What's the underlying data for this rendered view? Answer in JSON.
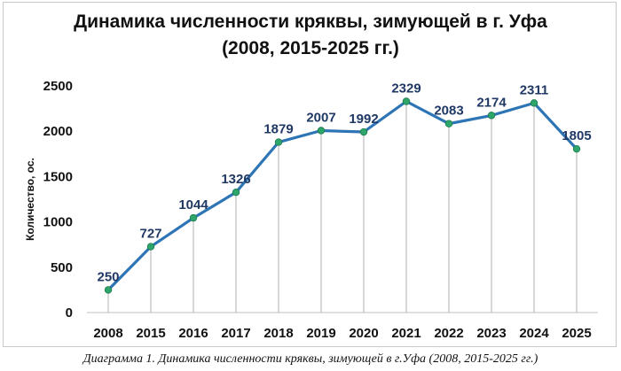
{
  "chart_data": {
    "type": "line",
    "title": "Динамика численности кряквы, зимующей в г. Уфа",
    "subtitle": "(2008, 2015-2025 гг.)",
    "xlabel": "",
    "ylabel": "Количество, ос.",
    "categories": [
      "2008",
      "2015",
      "2016",
      "2017",
      "2018",
      "2019",
      "2020",
      "2021",
      "2022",
      "2023",
      "2024",
      "2025"
    ],
    "values": [
      250,
      727,
      1044,
      1326,
      1879,
      2007,
      1992,
      2329,
      2083,
      2174,
      2311,
      1805
    ],
    "data_labels": [
      "250",
      "727",
      "1044",
      "1326",
      "1879",
      "2007",
      "1992",
      "2329",
      "2083",
      "2174",
      "2311",
      "1805"
    ],
    "ylim": [
      0,
      2500
    ],
    "yticks": [
      "0",
      "500",
      "1000",
      "1500",
      "2000",
      "2500"
    ],
    "ytick_values": [
      0,
      500,
      1000,
      1500,
      2000,
      2500
    ],
    "grid": false,
    "drop_lines": true,
    "colors": {
      "line": "#2e75b6",
      "marker": "#2ea56b",
      "data_label": "#1f3864",
      "drop_line": "#bfbfbf",
      "axis": "#bfbfbf"
    }
  },
  "caption": "Диаграмма 1. Динамика численности кряквы, зимующей в г.Уфа (2008, 2015-2025 гг.)"
}
